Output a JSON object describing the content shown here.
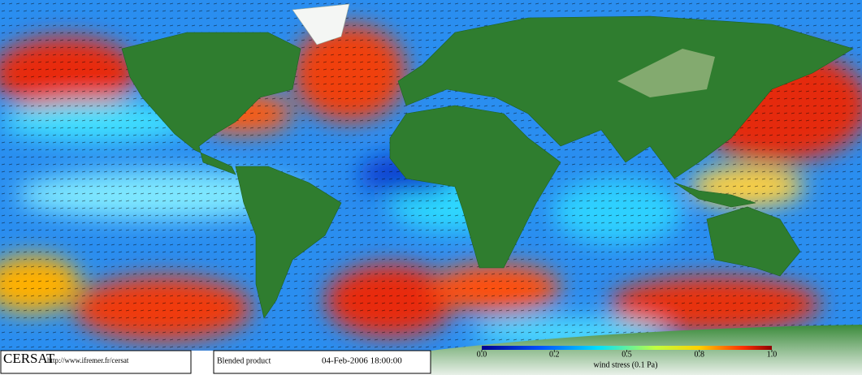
{
  "footer": {
    "logo": "CERSAT",
    "url": "http://www.ifremer.fr/cersat",
    "product": "Blended product",
    "datetime": "04-Feb-2006 18:00:00"
  },
  "colorbar": {
    "ticks": [
      {
        "value": 0,
        "label": "0.0"
      },
      {
        "value": 0.2,
        "label": "0.2"
      },
      {
        "value": 0.5,
        "label": "0.5"
      },
      {
        "value": 0.8,
        "label": "0.8"
      },
      {
        "value": 1,
        "label": "1.0"
      }
    ],
    "label": "wind stress (0.1 Pa)"
  }
}
